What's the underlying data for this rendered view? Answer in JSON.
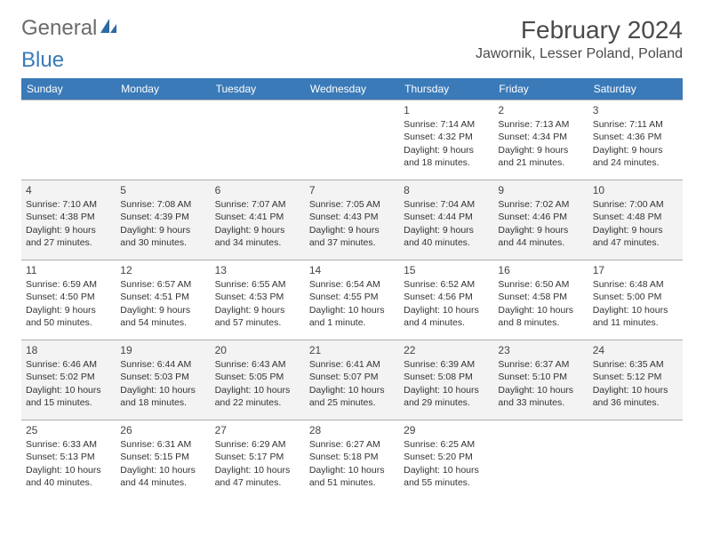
{
  "brand": {
    "name1": "General",
    "name2": "Blue"
  },
  "title": "February 2024",
  "location": "Jawornik, Lesser Poland, Poland",
  "colors": {
    "accent": "#3a7ab8",
    "header_text": "#ffffff",
    "grid_line": "#b0b0b0",
    "row_alt_bg": "#f3f3f3",
    "text": "#333333"
  },
  "weekdays": [
    "Sunday",
    "Monday",
    "Tuesday",
    "Wednesday",
    "Thursday",
    "Friday",
    "Saturday"
  ],
  "weeks": [
    [
      null,
      null,
      null,
      null,
      {
        "d": "1",
        "sr": "Sunrise: 7:14 AM",
        "ss": "Sunset: 4:32 PM",
        "dl1": "Daylight: 9 hours",
        "dl2": "and 18 minutes."
      },
      {
        "d": "2",
        "sr": "Sunrise: 7:13 AM",
        "ss": "Sunset: 4:34 PM",
        "dl1": "Daylight: 9 hours",
        "dl2": "and 21 minutes."
      },
      {
        "d": "3",
        "sr": "Sunrise: 7:11 AM",
        "ss": "Sunset: 4:36 PM",
        "dl1": "Daylight: 9 hours",
        "dl2": "and 24 minutes."
      }
    ],
    [
      {
        "d": "4",
        "sr": "Sunrise: 7:10 AM",
        "ss": "Sunset: 4:38 PM",
        "dl1": "Daylight: 9 hours",
        "dl2": "and 27 minutes."
      },
      {
        "d": "5",
        "sr": "Sunrise: 7:08 AM",
        "ss": "Sunset: 4:39 PM",
        "dl1": "Daylight: 9 hours",
        "dl2": "and 30 minutes."
      },
      {
        "d": "6",
        "sr": "Sunrise: 7:07 AM",
        "ss": "Sunset: 4:41 PM",
        "dl1": "Daylight: 9 hours",
        "dl2": "and 34 minutes."
      },
      {
        "d": "7",
        "sr": "Sunrise: 7:05 AM",
        "ss": "Sunset: 4:43 PM",
        "dl1": "Daylight: 9 hours",
        "dl2": "and 37 minutes."
      },
      {
        "d": "8",
        "sr": "Sunrise: 7:04 AM",
        "ss": "Sunset: 4:44 PM",
        "dl1": "Daylight: 9 hours",
        "dl2": "and 40 minutes."
      },
      {
        "d": "9",
        "sr": "Sunrise: 7:02 AM",
        "ss": "Sunset: 4:46 PM",
        "dl1": "Daylight: 9 hours",
        "dl2": "and 44 minutes."
      },
      {
        "d": "10",
        "sr": "Sunrise: 7:00 AM",
        "ss": "Sunset: 4:48 PM",
        "dl1": "Daylight: 9 hours",
        "dl2": "and 47 minutes."
      }
    ],
    [
      {
        "d": "11",
        "sr": "Sunrise: 6:59 AM",
        "ss": "Sunset: 4:50 PM",
        "dl1": "Daylight: 9 hours",
        "dl2": "and 50 minutes."
      },
      {
        "d": "12",
        "sr": "Sunrise: 6:57 AM",
        "ss": "Sunset: 4:51 PM",
        "dl1": "Daylight: 9 hours",
        "dl2": "and 54 minutes."
      },
      {
        "d": "13",
        "sr": "Sunrise: 6:55 AM",
        "ss": "Sunset: 4:53 PM",
        "dl1": "Daylight: 9 hours",
        "dl2": "and 57 minutes."
      },
      {
        "d": "14",
        "sr": "Sunrise: 6:54 AM",
        "ss": "Sunset: 4:55 PM",
        "dl1": "Daylight: 10 hours",
        "dl2": "and 1 minute."
      },
      {
        "d": "15",
        "sr": "Sunrise: 6:52 AM",
        "ss": "Sunset: 4:56 PM",
        "dl1": "Daylight: 10 hours",
        "dl2": "and 4 minutes."
      },
      {
        "d": "16",
        "sr": "Sunrise: 6:50 AM",
        "ss": "Sunset: 4:58 PM",
        "dl1": "Daylight: 10 hours",
        "dl2": "and 8 minutes."
      },
      {
        "d": "17",
        "sr": "Sunrise: 6:48 AM",
        "ss": "Sunset: 5:00 PM",
        "dl1": "Daylight: 10 hours",
        "dl2": "and 11 minutes."
      }
    ],
    [
      {
        "d": "18",
        "sr": "Sunrise: 6:46 AM",
        "ss": "Sunset: 5:02 PM",
        "dl1": "Daylight: 10 hours",
        "dl2": "and 15 minutes."
      },
      {
        "d": "19",
        "sr": "Sunrise: 6:44 AM",
        "ss": "Sunset: 5:03 PM",
        "dl1": "Daylight: 10 hours",
        "dl2": "and 18 minutes."
      },
      {
        "d": "20",
        "sr": "Sunrise: 6:43 AM",
        "ss": "Sunset: 5:05 PM",
        "dl1": "Daylight: 10 hours",
        "dl2": "and 22 minutes."
      },
      {
        "d": "21",
        "sr": "Sunrise: 6:41 AM",
        "ss": "Sunset: 5:07 PM",
        "dl1": "Daylight: 10 hours",
        "dl2": "and 25 minutes."
      },
      {
        "d": "22",
        "sr": "Sunrise: 6:39 AM",
        "ss": "Sunset: 5:08 PM",
        "dl1": "Daylight: 10 hours",
        "dl2": "and 29 minutes."
      },
      {
        "d": "23",
        "sr": "Sunrise: 6:37 AM",
        "ss": "Sunset: 5:10 PM",
        "dl1": "Daylight: 10 hours",
        "dl2": "and 33 minutes."
      },
      {
        "d": "24",
        "sr": "Sunrise: 6:35 AM",
        "ss": "Sunset: 5:12 PM",
        "dl1": "Daylight: 10 hours",
        "dl2": "and 36 minutes."
      }
    ],
    [
      {
        "d": "25",
        "sr": "Sunrise: 6:33 AM",
        "ss": "Sunset: 5:13 PM",
        "dl1": "Daylight: 10 hours",
        "dl2": "and 40 minutes."
      },
      {
        "d": "26",
        "sr": "Sunrise: 6:31 AM",
        "ss": "Sunset: 5:15 PM",
        "dl1": "Daylight: 10 hours",
        "dl2": "and 44 minutes."
      },
      {
        "d": "27",
        "sr": "Sunrise: 6:29 AM",
        "ss": "Sunset: 5:17 PM",
        "dl1": "Daylight: 10 hours",
        "dl2": "and 47 minutes."
      },
      {
        "d": "28",
        "sr": "Sunrise: 6:27 AM",
        "ss": "Sunset: 5:18 PM",
        "dl1": "Daylight: 10 hours",
        "dl2": "and 51 minutes."
      },
      {
        "d": "29",
        "sr": "Sunrise: 6:25 AM",
        "ss": "Sunset: 5:20 PM",
        "dl1": "Daylight: 10 hours",
        "dl2": "and 55 minutes."
      },
      null,
      null
    ]
  ]
}
